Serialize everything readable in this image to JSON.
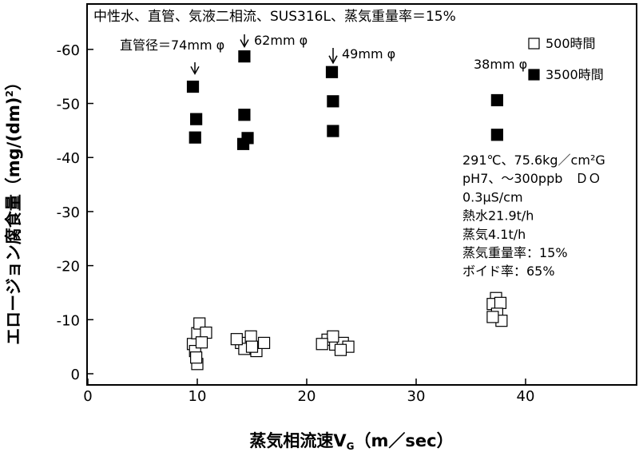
{
  "chart_data": {
    "type": "scatter",
    "title": "中性水、直管、気液二相流、SUS316L、蒸気重量率＝15%",
    "xlabel": "蒸気相流速V",
    "xlabel_sub": "G",
    "xlabel_unit": "（m／sec）",
    "ylabel": "エロージョン腐食量（mg/(dm)",
    "ylabel_sup": "2",
    "ylabel_close": "）",
    "xlim": [
      0,
      50
    ],
    "ylim": [
      0,
      -65
    ],
    "x_ticks": [
      0,
      10,
      20,
      30,
      40
    ],
    "y_ticks": [
      0,
      -10,
      -20,
      -30,
      -40,
      -50,
      -60
    ],
    "grid": false,
    "legend_position": "top-right",
    "series": [
      {
        "name": "500時間",
        "marker": "open-square",
        "points": [
          [
            9.6,
            -5.5
          ],
          [
            10.0,
            -7.5
          ],
          [
            9.8,
            -4.2
          ],
          [
            10.2,
            -9.3
          ],
          [
            10.8,
            -7.6
          ],
          [
            10.0,
            -1.8
          ],
          [
            9.9,
            -3.0
          ],
          [
            10.4,
            -5.8
          ],
          [
            14.0,
            -5.7
          ],
          [
            14.9,
            -6.9
          ],
          [
            14.3,
            -4.6
          ],
          [
            15.4,
            -4.2
          ],
          [
            16.1,
            -5.7
          ],
          [
            13.6,
            -6.4
          ],
          [
            15.0,
            -5.0
          ],
          [
            21.9,
            -6.3
          ],
          [
            22.6,
            -5.4
          ],
          [
            23.3,
            -5.7
          ],
          [
            23.8,
            -5.0
          ],
          [
            22.4,
            -6.9
          ],
          [
            21.4,
            -5.5
          ],
          [
            23.1,
            -4.4
          ],
          [
            37.3,
            -14.0
          ],
          [
            37.0,
            -12.9
          ],
          [
            37.7,
            -13.1
          ],
          [
            37.4,
            -11.1
          ],
          [
            37.8,
            -9.8
          ],
          [
            37.0,
            -10.5
          ]
        ]
      },
      {
        "name": "3500時間",
        "marker": "filled-square",
        "points": [
          [
            9.6,
            -53.1
          ],
          [
            9.9,
            -47.1
          ],
          [
            9.8,
            -43.7
          ],
          [
            14.3,
            -58.7
          ],
          [
            14.3,
            -47.9
          ],
          [
            14.6,
            -43.6
          ],
          [
            14.2,
            -42.5
          ],
          [
            22.3,
            -55.8
          ],
          [
            22.4,
            -50.4
          ],
          [
            22.4,
            -44.9
          ],
          [
            37.4,
            -50.6
          ],
          [
            37.4,
            -44.2
          ]
        ]
      }
    ],
    "annotations": [
      {
        "text": "直管径＝74mm φ",
        "x": 9.8,
        "y": -59.5,
        "arrow_to": [
          9.8,
          -55.5
        ]
      },
      {
        "text": "62mm φ",
        "x": 14.4,
        "y": -62.5,
        "arrow_to": [
          14.4,
          -60.5
        ]
      },
      {
        "text": "49mm φ",
        "x": 22.4,
        "y": -59.5,
        "arrow_to": [
          22.4,
          -57.5
        ]
      },
      {
        "text": "38mm φ",
        "x": 37.4,
        "y": -56.0
      }
    ],
    "conditions": [
      "291℃、75.6kg／cm²G",
      "pH7、～300ppb　ＤＯ",
      "0.3μS/cm",
      "熱水21.9t/h",
      "蒸気4.1t/h",
      "蒸気重量率：15%",
      "ボイド率：65%"
    ]
  }
}
